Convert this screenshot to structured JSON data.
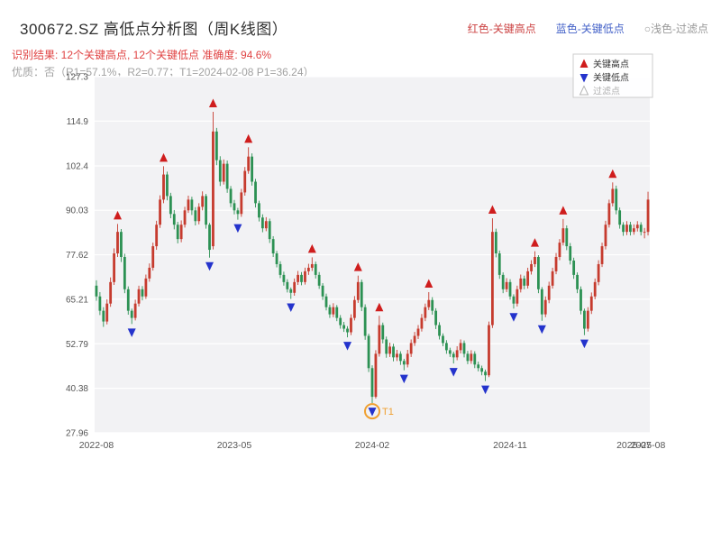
{
  "header": {
    "title": "300672.SZ 高低点分析图（周K线图）",
    "legend_top": [
      {
        "name": "red-key-high",
        "label": "红色-关键高点",
        "color": "#cc4444"
      },
      {
        "name": "blue-key-low",
        "label": "蓝色-关键低点",
        "color": "#4462c8"
      },
      {
        "name": "light-filtered",
        "label": "○浅色-过滤点",
        "color": "#9a9a9a"
      }
    ],
    "result_line": "识别结果: 12个关键高点, 12个关键低点  准确度: 94.6%",
    "quality_line": "优质：否（R1=57.1%，R2=0.77；T1=2024-02-08 P1=36.24）"
  },
  "chart_data": {
    "type": "candlestick",
    "title": "300672.SZ 高低点分析图（周K线图）",
    "xlabel": "",
    "ylabel": "",
    "grid": true,
    "legend_position": "top-right",
    "ylim": [
      27.96,
      127.3
    ],
    "y_ticks": [
      "27.96",
      "40.38",
      "52.79",
      "65.21",
      "77.62",
      "90.03",
      "102.4",
      "114.9",
      "127.3"
    ],
    "x_ticks": [
      {
        "week": 0,
        "label": "2022-08"
      },
      {
        "week": 39,
        "label": "2023-05"
      },
      {
        "week": 78,
        "label": "2024-02"
      },
      {
        "week": 117,
        "label": "2024-11"
      },
      {
        "week": 152,
        "label": "2025-07"
      },
      {
        "week": 156,
        "label": "2025-08"
      }
    ],
    "legend": [
      {
        "name": "关键高点",
        "marker": "up",
        "color": "#cf1d1d",
        "text_color": "#333333"
      },
      {
        "name": "关键低点",
        "marker": "down",
        "color": "#2433cc",
        "text_color": "#333333"
      },
      {
        "name": "过滤点",
        "marker": "up-hollow",
        "color": "#b5b5b5",
        "text_color": "#b0b0b0"
      }
    ],
    "colors": {
      "up": "#c63b2e",
      "down": "#2c9153",
      "high_marker": "#cf1d1d",
      "low_marker": "#2433cc",
      "panel": "#f2f2f4",
      "grid": "#ffffff",
      "tick_text": "#555555",
      "t1": "#f0a030"
    },
    "candles": [
      [
        69,
        70.5,
        64.8,
        66
      ],
      [
        66,
        67.2,
        60.8,
        62
      ],
      [
        62,
        63,
        57.5,
        59
      ],
      [
        59,
        65.2,
        58.2,
        64
      ],
      [
        64,
        71.3,
        63.1,
        70
      ],
      [
        70,
        79.4,
        69.2,
        78
      ],
      [
        78,
        86.2,
        77,
        84
      ],
      [
        84,
        84.8,
        75.6,
        77
      ],
      [
        77,
        77.9,
        66.9,
        68
      ],
      [
        68,
        68.8,
        60.9,
        62
      ],
      [
        62,
        62.6,
        58.3,
        60
      ],
      [
        60,
        65.1,
        59.3,
        64
      ],
      [
        64,
        69,
        63.2,
        68
      ],
      [
        68,
        68.9,
        64.9,
        66
      ],
      [
        66,
        72.1,
        65.3,
        71
      ],
      [
        71,
        75.2,
        70.1,
        74
      ],
      [
        74,
        81,
        73.2,
        80
      ],
      [
        80,
        87.1,
        79,
        86
      ],
      [
        86,
        94.2,
        85.1,
        93
      ],
      [
        93,
        102.3,
        92,
        100
      ],
      [
        100,
        100.8,
        92.8,
        94
      ],
      [
        94,
        94.9,
        87.8,
        89
      ],
      [
        89,
        90.1,
        84.7,
        86
      ],
      [
        86,
        86.8,
        80.8,
        82
      ],
      [
        82,
        87.2,
        81.1,
        86
      ],
      [
        86,
        91,
        85.2,
        90
      ],
      [
        90,
        94.1,
        89.3,
        93
      ],
      [
        93,
        93.8,
        88.7,
        90
      ],
      [
        90,
        90.9,
        85.8,
        87
      ],
      [
        87,
        92,
        86.1,
        91
      ],
      [
        91,
        95.3,
        90,
        94
      ],
      [
        94,
        94.6,
        84.9,
        86
      ],
      [
        86,
        86.5,
        76.8,
        79
      ],
      [
        80,
        117.5,
        79.1,
        112
      ],
      [
        112,
        113,
        102.6,
        104
      ],
      [
        104,
        105.1,
        96.8,
        98
      ],
      [
        98,
        104.2,
        97.2,
        103
      ],
      [
        103,
        103.9,
        94.9,
        96
      ],
      [
        96,
        96.8,
        90.9,
        92
      ],
      [
        92,
        92.9,
        88.9,
        90
      ],
      [
        90,
        90.7,
        87.4,
        89
      ],
      [
        89,
        96,
        88.2,
        95
      ],
      [
        95,
        102.1,
        94.1,
        101
      ],
      [
        101,
        107.6,
        100.2,
        105
      ],
      [
        105,
        105.9,
        96.9,
        98
      ],
      [
        98,
        98.8,
        90.8,
        92
      ],
      [
        92,
        92.7,
        86.9,
        88
      ],
      [
        88,
        88.9,
        83.9,
        85
      ],
      [
        85,
        88.1,
        84.2,
        87
      ],
      [
        87,
        87.7,
        80.9,
        82
      ],
      [
        82,
        82.8,
        77,
        78
      ],
      [
        78,
        78.7,
        74.1,
        75
      ],
      [
        75,
        75.8,
        71.1,
        72
      ],
      [
        72,
        72.9,
        69,
        70
      ],
      [
        70,
        70.8,
        67.1,
        68
      ],
      [
        68,
        68.5,
        65.3,
        67
      ],
      [
        67,
        71,
        66.2,
        70
      ],
      [
        70,
        73.1,
        69.2,
        72
      ],
      [
        72,
        72.8,
        69.1,
        70
      ],
      [
        70,
        74,
        69.3,
        73
      ],
      [
        73,
        75.1,
        72,
        74
      ],
      [
        74,
        76.9,
        73.1,
        75
      ],
      [
        75,
        75.7,
        71,
        72
      ],
      [
        72,
        72.8,
        68.1,
        69
      ],
      [
        69,
        69.7,
        65,
        66
      ],
      [
        66,
        66.8,
        62.1,
        63
      ],
      [
        63,
        63.7,
        60,
        61
      ],
      [
        61,
        64.1,
        60.2,
        63
      ],
      [
        63,
        63.6,
        59.1,
        60
      ],
      [
        60,
        60.8,
        57,
        58
      ],
      [
        58,
        58.9,
        56.1,
        57
      ],
      [
        57,
        57.7,
        54.6,
        56
      ],
      [
        56,
        61,
        55.2,
        60
      ],
      [
        60,
        66.1,
        59.3,
        65
      ],
      [
        65,
        71.8,
        64.2,
        70
      ],
      [
        70,
        70.7,
        61.9,
        63
      ],
      [
        63,
        63.8,
        53.9,
        55
      ],
      [
        55,
        55.6,
        44.9,
        46
      ],
      [
        46,
        46.8,
        36.24,
        38
      ],
      [
        38,
        51,
        37.5,
        50
      ],
      [
        50,
        60.6,
        49.2,
        58
      ],
      [
        58,
        58.7,
        52.9,
        54
      ],
      [
        54,
        54.8,
        48.9,
        50
      ],
      [
        50,
        53.1,
        49.1,
        52
      ],
      [
        52,
        52.8,
        47.9,
        49
      ],
      [
        49,
        51.1,
        48,
        50
      ],
      [
        50,
        50.7,
        46.9,
        48
      ],
      [
        48,
        48.6,
        45.4,
        47
      ],
      [
        47,
        51.1,
        46.2,
        50
      ],
      [
        50,
        54,
        49.1,
        53
      ],
      [
        53,
        56.1,
        52.2,
        55
      ],
      [
        55,
        58,
        54.1,
        57
      ],
      [
        57,
        61.1,
        56.2,
        60
      ],
      [
        60,
        64,
        59.1,
        63
      ],
      [
        63,
        67.2,
        62.2,
        65
      ],
      [
        65,
        65.8,
        60.9,
        62
      ],
      [
        62,
        62.7,
        56.9,
        58
      ],
      [
        58,
        58.8,
        54,
        55
      ],
      [
        55,
        55.7,
        52.1,
        53
      ],
      [
        53,
        53.8,
        50,
        51
      ],
      [
        51,
        51.7,
        49.1,
        50
      ],
      [
        50,
        50.6,
        47.3,
        49
      ],
      [
        49,
        52.1,
        48.2,
        51
      ],
      [
        51,
        54,
        50.1,
        53
      ],
      [
        53,
        53.7,
        49,
        50
      ],
      [
        50,
        50.8,
        47.1,
        48
      ],
      [
        48,
        51,
        47.2,
        50
      ],
      [
        50,
        50.7,
        46,
        47
      ],
      [
        47,
        47.8,
        45.1,
        46
      ],
      [
        46,
        46.7,
        44,
        45
      ],
      [
        45,
        45.6,
        42.4,
        44
      ],
      [
        44,
        59,
        43.5,
        58
      ],
      [
        58,
        87.8,
        57.2,
        84
      ],
      [
        84,
        84.9,
        76.9,
        78
      ],
      [
        78,
        78.8,
        70.9,
        72
      ],
      [
        72,
        72.7,
        66.9,
        68
      ],
      [
        68,
        71.1,
        67.2,
        70
      ],
      [
        70,
        70.8,
        65.1,
        66
      ],
      [
        66,
        66.6,
        62.6,
        64
      ],
      [
        64,
        69,
        63.2,
        68
      ],
      [
        68,
        72.1,
        67.1,
        71
      ],
      [
        71,
        71.8,
        68,
        69
      ],
      [
        69,
        74,
        68.2,
        73
      ],
      [
        73,
        76.1,
        72.1,
        75
      ],
      [
        75,
        78.6,
        74.2,
        77
      ],
      [
        77,
        77.5,
        66.9,
        68
      ],
      [
        68,
        68.6,
        59.2,
        61
      ],
      [
        61,
        66,
        60.2,
        65
      ],
      [
        65,
        70.1,
        64.1,
        69
      ],
      [
        69,
        74,
        68.2,
        73
      ],
      [
        73,
        78.1,
        72.2,
        77
      ],
      [
        77,
        82,
        76.1,
        81
      ],
      [
        81,
        87.6,
        80.2,
        85
      ],
      [
        85,
        85.8,
        78.9,
        80
      ],
      [
        80,
        80.9,
        74.9,
        76
      ],
      [
        76,
        76.8,
        70.9,
        72
      ],
      [
        72,
        72.7,
        66.9,
        68
      ],
      [
        68,
        68.8,
        61,
        62
      ],
      [
        62,
        62.6,
        55.2,
        57
      ],
      [
        57,
        63,
        56.2,
        62
      ],
      [
        62,
        67.1,
        61.1,
        66
      ],
      [
        66,
        71,
        65.2,
        70
      ],
      [
        70,
        76.1,
        69.1,
        75
      ],
      [
        75,
        81,
        74.2,
        80
      ],
      [
        80,
        87.1,
        79.1,
        86
      ],
      [
        86,
        93,
        85.2,
        92
      ],
      [
        92,
        97.8,
        91.1,
        96
      ],
      [
        96,
        96.9,
        88.9,
        90
      ],
      [
        90,
        90.8,
        84.9,
        86
      ],
      [
        86,
        86.7,
        82.9,
        84
      ],
      [
        84,
        87,
        83.1,
        86
      ],
      [
        86,
        86.8,
        83,
        84
      ],
      [
        84,
        86.1,
        83.2,
        85
      ],
      [
        85,
        87,
        84.1,
        86
      ],
      [
        86,
        86.7,
        83,
        84
      ],
      [
        84,
        85.1,
        82.2,
        84
      ],
      [
        84,
        95.2,
        83,
        93
      ]
    ],
    "high_markers": [
      {
        "week": 6,
        "price": 86.2
      },
      {
        "week": 19,
        "price": 102.3
      },
      {
        "week": 33,
        "price": 117.5
      },
      {
        "week": 43,
        "price": 107.6
      },
      {
        "week": 61,
        "price": 76.9
      },
      {
        "week": 74,
        "price": 71.8
      },
      {
        "week": 80,
        "price": 60.6
      },
      {
        "week": 94,
        "price": 67.2
      },
      {
        "week": 112,
        "price": 87.8
      },
      {
        "week": 124,
        "price": 78.6
      },
      {
        "week": 132,
        "price": 87.6
      },
      {
        "week": 146,
        "price": 97.8
      }
    ],
    "low_markers": [
      {
        "week": 10,
        "price": 58.3
      },
      {
        "week": 32,
        "price": 76.8
      },
      {
        "week": 40,
        "price": 87.4
      },
      {
        "week": 55,
        "price": 65.3
      },
      {
        "week": 71,
        "price": 54.6
      },
      {
        "week": 78,
        "price": 36.24
      },
      {
        "week": 87,
        "price": 45.4
      },
      {
        "week": 101,
        "price": 47.3
      },
      {
        "week": 110,
        "price": 42.4
      },
      {
        "week": 118,
        "price": 62.6
      },
      {
        "week": 126,
        "price": 59.2
      },
      {
        "week": 138,
        "price": 55.2
      }
    ],
    "t1": {
      "week": 78,
      "price": 36.24,
      "label": "T1"
    }
  }
}
